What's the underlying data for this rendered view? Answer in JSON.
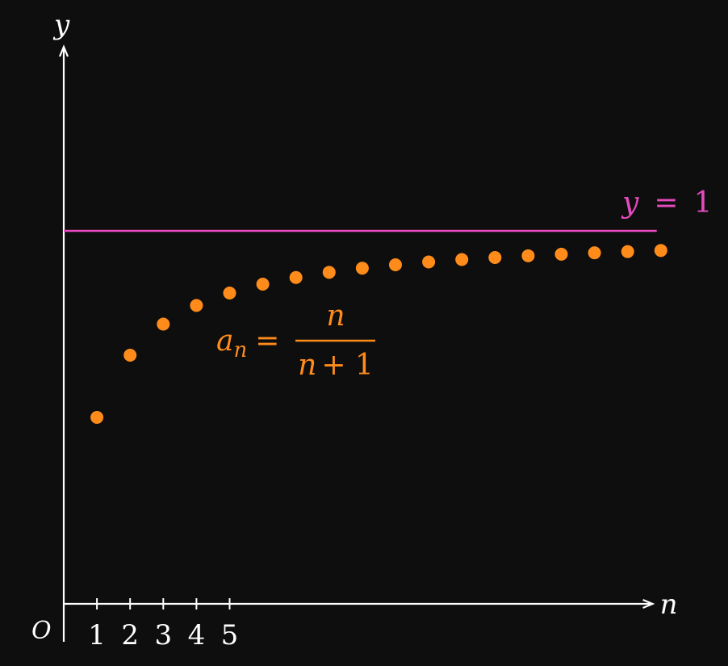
{
  "colors": {
    "background": "#0e0e0e",
    "axes": "#ffffff",
    "points": "#ff8c1a",
    "asymptote": "#e64bbf"
  },
  "chart_data": {
    "type": "scatter",
    "title": "",
    "xlabel": "n",
    "ylabel": "y",
    "origin_label": "O",
    "xlim": [
      0,
      17.8
    ],
    "ylim": [
      0,
      1.35
    ],
    "x_ticks": [
      1,
      2,
      3,
      4,
      5
    ],
    "x_tick_labels": [
      "1",
      "2",
      "3",
      "4",
      "5"
    ],
    "grid": false,
    "series": [
      {
        "name": "a_n = n/(n+1)",
        "x": [
          1,
          2,
          3,
          4,
          5,
          6,
          7,
          8,
          9,
          10,
          11,
          12,
          13,
          14,
          15,
          16,
          17,
          18
        ],
        "y": [
          0.5,
          0.6667,
          0.75,
          0.8,
          0.8333,
          0.8571,
          0.875,
          0.8889,
          0.9,
          0.9091,
          0.9167,
          0.9231,
          0.9286,
          0.9333,
          0.9375,
          0.9412,
          0.9444,
          0.9474
        ]
      }
    ],
    "reference_line": {
      "type": "horizontal",
      "y": 1
    },
    "annotations": {
      "formula_lhs": "a",
      "formula_sub": "n",
      "formula_eq": "=",
      "formula_num": "n",
      "formula_den_var": "n",
      "formula_den_rest": "+ 1",
      "asymptote_var": "y",
      "asymptote_eq": "=",
      "asymptote_val": "1"
    }
  }
}
